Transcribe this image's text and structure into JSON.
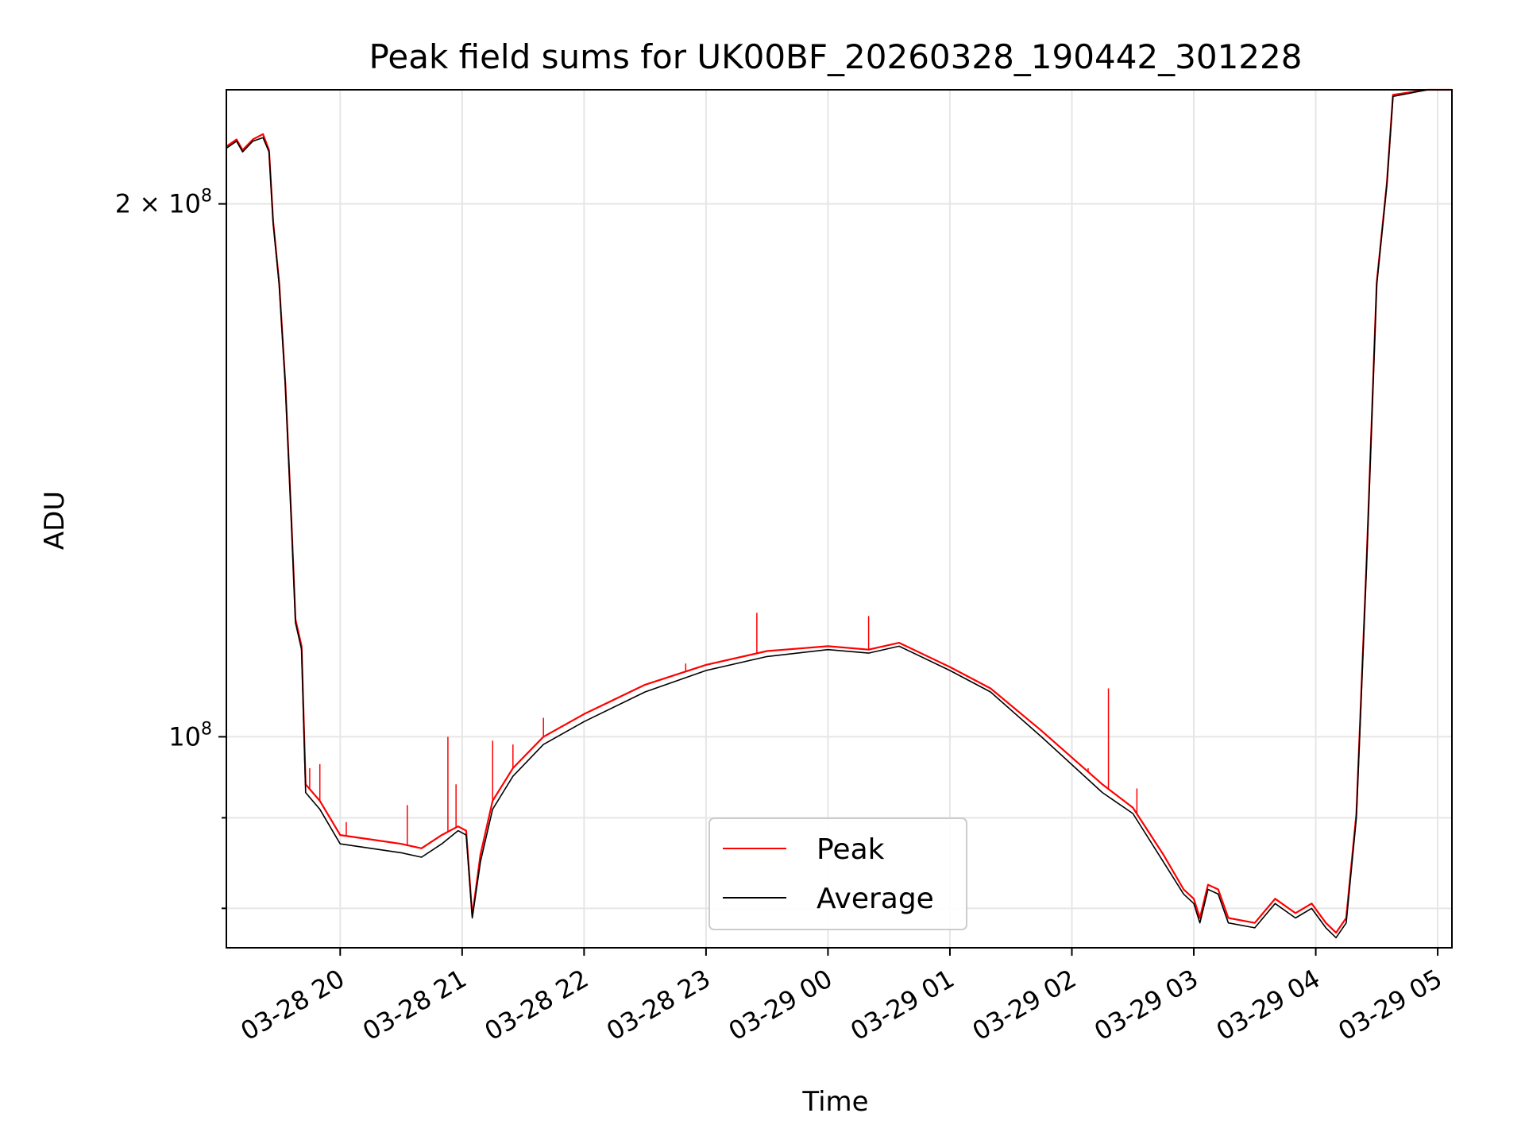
{
  "chart_data": {
    "type": "line",
    "title": "Peak field sums for UK00BF_20260328_190442_301228",
    "xlabel": "Time",
    "ylabel": "ADU",
    "yscale": "log",
    "grid": true,
    "legend_position": "bottom-center",
    "x_ticks": [
      "03-28 20",
      "03-28 21",
      "03-28 22",
      "03-28 23",
      "03-29 00",
      "03-29 01",
      "03-29 02",
      "03-29 03",
      "03-29 04",
      "03-29 05"
    ],
    "y_tick_labels": [
      {
        "value": 200000000,
        "base": "2 × 10",
        "exp": "8"
      },
      {
        "value": 100000000,
        "base": "10",
        "exp": "8"
      }
    ],
    "y_minor_ticks": [
      90000000,
      80000000
    ],
    "xlim": [
      "2026-03-28 19:04",
      "2026-03-29 05:07"
    ],
    "ylim": [
      76000000,
      232000000
    ],
    "colors": {
      "peak": "#ff0000",
      "average": "#000000"
    },
    "series": [
      {
        "name": "Average",
        "color": "#000000",
        "points": [
          [
            "2026-03-28 19:04",
            215000000
          ],
          [
            "2026-03-28 19:09",
            217000000
          ],
          [
            "2026-03-28 19:12",
            214000000
          ],
          [
            "2026-03-28 19:17",
            217000000
          ],
          [
            "2026-03-28 19:22",
            218000000
          ],
          [
            "2026-03-28 19:25",
            214000000
          ],
          [
            "2026-03-28 19:27",
            195000000
          ],
          [
            "2026-03-28 19:30",
            180000000
          ],
          [
            "2026-03-28 19:33",
            158000000
          ],
          [
            "2026-03-28 19:36",
            132000000
          ],
          [
            "2026-03-28 19:38",
            116000000
          ],
          [
            "2026-03-28 19:41",
            112000000
          ],
          [
            "2026-03-28 19:43",
            93000000
          ],
          [
            "2026-03-28 19:50",
            91000000
          ],
          [
            "2026-03-28 20:00",
            87000000
          ],
          [
            "2026-03-28 20:15",
            86500000
          ],
          [
            "2026-03-28 20:30",
            86000000
          ],
          [
            "2026-03-28 20:40",
            85500000
          ],
          [
            "2026-03-28 20:50",
            87000000
          ],
          [
            "2026-03-28 20:58",
            88500000
          ],
          [
            "2026-03-28 21:02",
            88000000
          ],
          [
            "2026-03-28 21:05",
            79000000
          ],
          [
            "2026-03-28 21:09",
            85000000
          ],
          [
            "2026-03-28 21:15",
            91000000
          ],
          [
            "2026-03-28 21:25",
            95000000
          ],
          [
            "2026-03-28 21:40",
            99000000
          ],
          [
            "2026-03-28 22:00",
            102000000
          ],
          [
            "2026-03-28 22:30",
            106000000
          ],
          [
            "2026-03-28 23:00",
            109000000
          ],
          [
            "2026-03-28 23:30",
            111000000
          ],
          [
            "2026-03-29 00:00",
            112000000
          ],
          [
            "2026-03-29 00:20",
            111500000
          ],
          [
            "2026-03-29 00:35",
            112500000
          ],
          [
            "2026-03-29 01:00",
            109000000
          ],
          [
            "2026-03-29 01:20",
            106000000
          ],
          [
            "2026-03-29 01:45",
            100000000
          ],
          [
            "2026-03-29 02:15",
            93000000
          ],
          [
            "2026-03-29 02:30",
            90500000
          ],
          [
            "2026-03-29 02:45",
            85000000
          ],
          [
            "2026-03-29 02:55",
            81500000
          ],
          [
            "2026-03-29 03:00",
            80500000
          ],
          [
            "2026-03-29 03:03",
            78500000
          ],
          [
            "2026-03-29 03:07",
            82000000
          ],
          [
            "2026-03-29 03:12",
            81500000
          ],
          [
            "2026-03-29 03:17",
            78500000
          ],
          [
            "2026-03-29 03:30",
            78000000
          ],
          [
            "2026-03-29 03:40",
            80500000
          ],
          [
            "2026-03-29 03:50",
            79000000
          ],
          [
            "2026-03-29 03:58",
            80000000
          ],
          [
            "2026-03-29 04:05",
            78000000
          ],
          [
            "2026-03-29 04:10",
            77000000
          ],
          [
            "2026-03-29 04:15",
            78500000
          ],
          [
            "2026-03-29 04:20",
            90000000
          ],
          [
            "2026-03-29 04:25",
            125000000
          ],
          [
            "2026-03-29 04:30",
            180000000
          ],
          [
            "2026-03-29 04:35",
            205000000
          ],
          [
            "2026-03-29 04:38",
            230000000
          ],
          [
            "2026-03-29 04:55",
            232000000
          ],
          [
            "2026-03-29 05:07",
            232000000
          ]
        ]
      },
      {
        "name": "Peak",
        "color": "#ff0000",
        "points": [
          [
            "2026-03-28 19:04",
            215500000
          ],
          [
            "2026-03-28 19:09",
            217500000
          ],
          [
            "2026-03-28 19:12",
            214500000
          ],
          [
            "2026-03-28 19:17",
            217500000
          ],
          [
            "2026-03-28 19:22",
            219000000
          ],
          [
            "2026-03-28 19:25",
            214500000
          ],
          [
            "2026-03-28 19:27",
            195500000
          ],
          [
            "2026-03-28 19:30",
            180500000
          ],
          [
            "2026-03-28 19:33",
            158500000
          ],
          [
            "2026-03-28 19:36",
            132500000
          ],
          [
            "2026-03-28 19:38",
            116500000
          ],
          [
            "2026-03-28 19:41",
            112500000
          ],
          [
            "2026-03-28 19:43",
            94000000
          ],
          [
            "2026-03-28 19:50",
            92000000
          ],
          [
            "2026-03-28 20:00",
            88000000
          ],
          [
            "2026-03-28 20:15",
            87500000
          ],
          [
            "2026-03-28 20:30",
            87000000
          ],
          [
            "2026-03-28 20:40",
            86500000
          ],
          [
            "2026-03-28 20:50",
            88000000
          ],
          [
            "2026-03-28 20:58",
            89000000
          ],
          [
            "2026-03-28 21:02",
            88500000
          ],
          [
            "2026-03-28 21:05",
            79200000
          ],
          [
            "2026-03-28 21:09",
            85800000
          ],
          [
            "2026-03-28 21:15",
            92000000
          ],
          [
            "2026-03-28 21:25",
            96000000
          ],
          [
            "2026-03-28 21:40",
            100000000
          ],
          [
            "2026-03-28 22:00",
            103000000
          ],
          [
            "2026-03-28 22:30",
            107000000
          ],
          [
            "2026-03-28 23:00",
            109800000
          ],
          [
            "2026-03-28 23:30",
            111800000
          ],
          [
            "2026-03-29 00:00",
            112500000
          ],
          [
            "2026-03-29 00:20",
            112000000
          ],
          [
            "2026-03-29 00:35",
            113000000
          ],
          [
            "2026-03-29 01:00",
            109500000
          ],
          [
            "2026-03-29 01:20",
            106500000
          ],
          [
            "2026-03-29 01:45",
            100800000
          ],
          [
            "2026-03-29 02:15",
            94000000
          ],
          [
            "2026-03-29 02:30",
            91200000
          ],
          [
            "2026-03-29 02:45",
            85800000
          ],
          [
            "2026-03-29 02:55",
            82000000
          ],
          [
            "2026-03-29 03:00",
            81000000
          ],
          [
            "2026-03-29 03:03",
            79000000
          ],
          [
            "2026-03-29 03:07",
            82500000
          ],
          [
            "2026-03-29 03:12",
            82000000
          ],
          [
            "2026-03-29 03:17",
            79000000
          ],
          [
            "2026-03-29 03:30",
            78500000
          ],
          [
            "2026-03-29 03:40",
            81000000
          ],
          [
            "2026-03-29 03:50",
            79500000
          ],
          [
            "2026-03-29 03:58",
            80500000
          ],
          [
            "2026-03-29 04:05",
            78500000
          ],
          [
            "2026-03-29 04:10",
            77500000
          ],
          [
            "2026-03-29 04:15",
            79000000
          ],
          [
            "2026-03-29 04:20",
            90500000
          ],
          [
            "2026-03-29 04:25",
            125500000
          ],
          [
            "2026-03-29 04:30",
            180500000
          ],
          [
            "2026-03-29 04:35",
            205500000
          ],
          [
            "2026-03-29 04:38",
            230500000
          ],
          [
            "2026-03-29 04:55",
            232000000
          ],
          [
            "2026-03-29 05:07",
            232000000
          ]
        ],
        "spikes": [
          [
            "2026-03-28 19:45",
            96000000
          ],
          [
            "2026-03-28 19:50",
            96500000
          ],
          [
            "2026-03-28 20:03",
            89500000
          ],
          [
            "2026-03-28 20:33",
            91500000
          ],
          [
            "2026-03-28 20:53",
            100000000
          ],
          [
            "2026-03-28 20:57",
            94000000
          ],
          [
            "2026-03-28 21:15",
            99500000
          ],
          [
            "2026-03-28 21:25",
            99000000
          ],
          [
            "2026-03-28 21:40",
            102500000
          ],
          [
            "2026-03-28 22:50",
            110000000
          ],
          [
            "2026-03-28 23:25",
            117500000
          ],
          [
            "2026-03-29 00:20",
            117000000
          ],
          [
            "2026-03-29 02:08",
            96000000
          ],
          [
            "2026-03-29 02:18",
            106500000
          ],
          [
            "2026-03-29 02:32",
            93500000
          ]
        ]
      }
    ]
  }
}
